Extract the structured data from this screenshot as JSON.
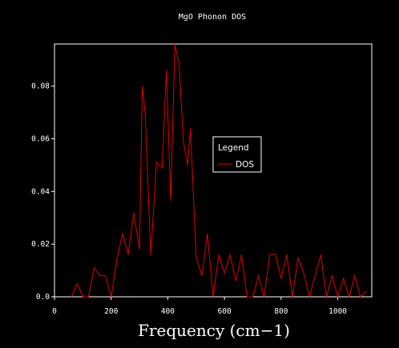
{
  "chart_data": {
    "type": "line",
    "title": "MgO Phonon DOS",
    "xlabel": "Frequency (cm−1)",
    "ylabel": "",
    "xlim": [
      0,
      1120
    ],
    "ylim": [
      0,
      0.096
    ],
    "x_ticks": [
      0,
      200,
      400,
      600,
      800,
      1000
    ],
    "x_tick_labels": [
      "0",
      "200",
      "400",
      "600",
      "800",
      "1000"
    ],
    "y_ticks": [
      0.0,
      0.02,
      0.04,
      0.06,
      0.08
    ],
    "y_tick_labels": [
      "0.0",
      "0.02",
      "0.04",
      "0.06",
      "0.08"
    ],
    "grid": false,
    "legend": {
      "title": "Legend",
      "placement": "center-right"
    },
    "series": [
      {
        "name": "DOS",
        "color": "#e00000",
        "x": [
          60,
          80,
          100,
          120,
          140,
          160,
          180,
          200,
          220,
          240,
          260,
          280,
          300,
          310,
          320,
          340,
          360,
          380,
          395,
          410,
          425,
          440,
          455,
          470,
          480,
          500,
          520,
          540,
          560,
          580,
          600,
          620,
          640,
          660,
          680,
          700,
          720,
          740,
          760,
          780,
          800,
          820,
          840,
          860,
          880,
          900,
          920,
          940,
          960,
          980,
          1000,
          1020,
          1040,
          1060,
          1080,
          1100
        ],
        "y": [
          0.0,
          0.005,
          0.0,
          0.0,
          0.011,
          0.008,
          0.008,
          0.0,
          0.014,
          0.024,
          0.016,
          0.032,
          0.018,
          0.08,
          0.07,
          0.016,
          0.051,
          0.049,
          0.086,
          0.037,
          0.096,
          0.088,
          0.059,
          0.05,
          0.064,
          0.015,
          0.008,
          0.024,
          0.0,
          0.016,
          0.009,
          0.016,
          0.006,
          0.016,
          0.0,
          0.0,
          0.008,
          0.0,
          0.016,
          0.016,
          0.007,
          0.016,
          0.0,
          0.015,
          0.009,
          0.0,
          0.008,
          0.016,
          0.0,
          0.008,
          0.0,
          0.007,
          0.0,
          0.008,
          0.0,
          0.002
        ]
      }
    ]
  }
}
